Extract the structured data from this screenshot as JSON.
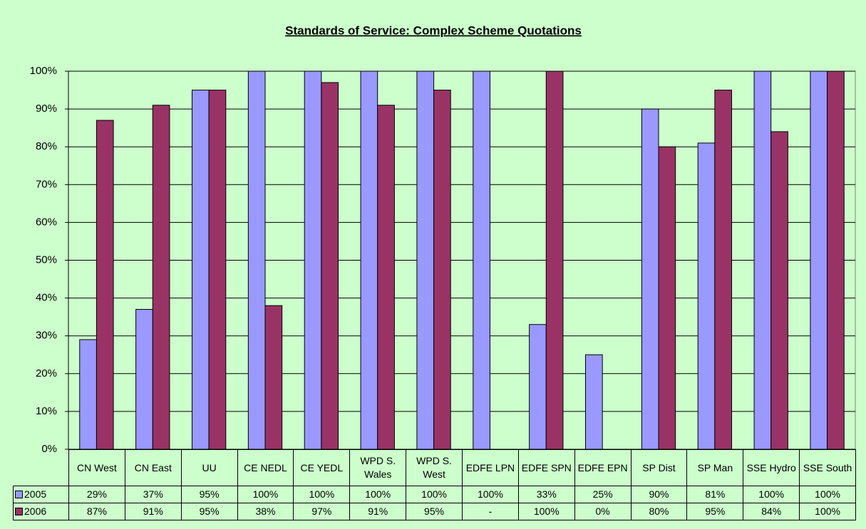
{
  "chart_data": {
    "type": "bar",
    "title": "Standards of Service: Complex Scheme Quotations",
    "categories": [
      "CN West",
      "CN East",
      "UU",
      "CE NEDL",
      "CE YEDL",
      "WPD S. Wales",
      "WPD S. West",
      "EDFE LPN",
      "EDFE SPN",
      "EDFE EPN",
      "SP Dist",
      "SP Man",
      "SSE Hydro",
      "SSE South"
    ],
    "series": [
      {
        "name": "2005",
        "color": "#9999ff",
        "values": [
          29,
          37,
          95,
          100,
          100,
          100,
          100,
          100,
          33,
          25,
          90,
          81,
          100,
          100
        ],
        "value_labels": [
          "29%",
          "37%",
          "95%",
          "100%",
          "100%",
          "100%",
          "100%",
          "100%",
          "33%",
          "25%",
          "90%",
          "81%",
          "100%",
          "100%"
        ]
      },
      {
        "name": "2006",
        "color": "#993366",
        "values": [
          87,
          91,
          95,
          38,
          97,
          91,
          95,
          null,
          100,
          0,
          80,
          95,
          84,
          100
        ],
        "value_labels": [
          "87%",
          "91%",
          "95%",
          "38%",
          "97%",
          "91%",
          "95%",
          "-",
          "100%",
          "0%",
          "80%",
          "95%",
          "84%",
          "100%"
        ]
      }
    ],
    "ylim": [
      0,
      100
    ],
    "yticks": [
      {
        "value": 0,
        "label": "0%"
      },
      {
        "value": 10,
        "label": "10%"
      },
      {
        "value": 20,
        "label": "20%"
      },
      {
        "value": 30,
        "label": "30%"
      },
      {
        "value": 40,
        "label": "40%"
      },
      {
        "value": 50,
        "label": "50%"
      },
      {
        "value": 60,
        "label": "60%"
      },
      {
        "value": 70,
        "label": "70%"
      },
      {
        "value": 80,
        "label": "80%"
      },
      {
        "value": 90,
        "label": "90%"
      },
      {
        "value": 100,
        "label": "100%"
      }
    ],
    "grid": true
  }
}
